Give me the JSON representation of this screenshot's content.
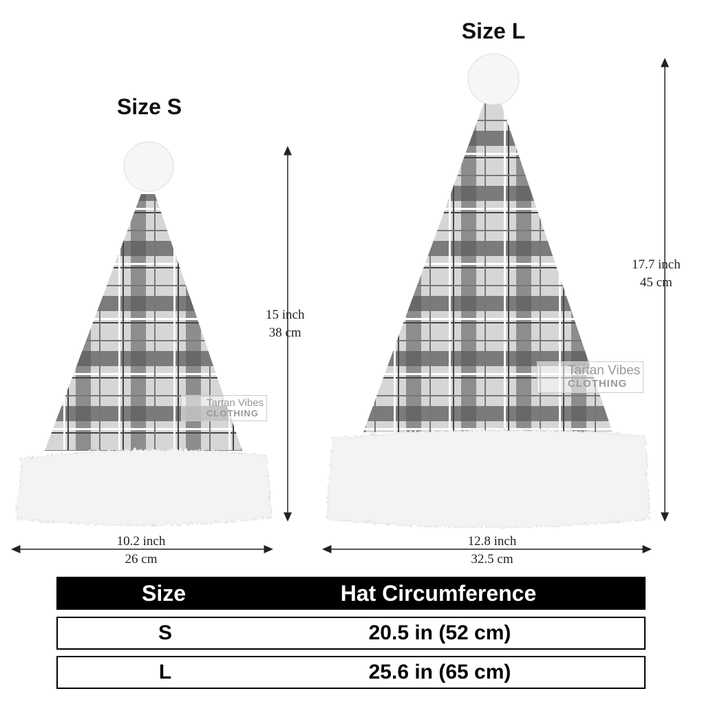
{
  "sizes": [
    {
      "title": "Size S",
      "height_in": "15 inch",
      "height_cm": "38 cm",
      "width_in": "10.2 inch",
      "width_cm": "26 cm"
    },
    {
      "title": "Size L",
      "height_in": "17.7 inch",
      "height_cm": "45 cm",
      "width_in": "12.8 inch",
      "width_cm": "32.5 cm"
    }
  ],
  "watermark": {
    "line1": "Tartan Vibes",
    "line2": "CLOTHING"
  },
  "table": {
    "headers": [
      "Size",
      "Hat Circumference"
    ],
    "rows": [
      [
        "S",
        "20.5 in (52 cm)"
      ],
      [
        "L",
        "25.6 in (65 cm)"
      ]
    ]
  },
  "colors": {
    "plaid_light": "#d9d9d9",
    "plaid_dark": "#5a5a5a",
    "fur": "#f4f4f4",
    "header_bg": "#000000"
  }
}
